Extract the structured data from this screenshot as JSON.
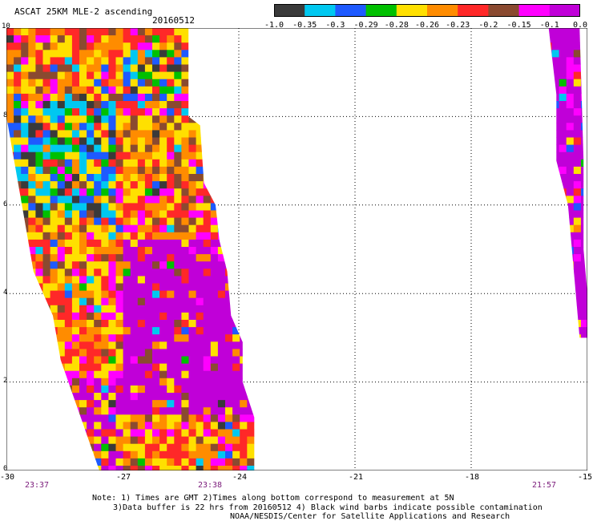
{
  "header": {
    "title": "ASCAT 25KM MLE-2 ascending",
    "date": "20160512"
  },
  "colorbar": {
    "colors": [
      "#3a3a3a",
      "#00c8f0",
      "#1e5aff",
      "#00c000",
      "#ffe000",
      "#ff8c00",
      "#ff2828",
      "#8a4a30",
      "#ff00ff",
      "#c000d8"
    ],
    "labels": [
      "-1.0",
      "-0.35",
      "-0.3",
      "-0.29",
      "-0.28",
      "-0.26",
      "-0.23",
      "-0.2",
      "-0.15",
      "-0.1",
      "0.0"
    ]
  },
  "axes": {
    "y_ticks": [
      "0",
      "2",
      "4",
      "6",
      "8",
      "10"
    ],
    "x_ticks": [
      "-30",
      "-27",
      "-24",
      "-21",
      "-18",
      "-15"
    ],
    "time_labels": [
      "23:37",
      "23:38",
      "21:57"
    ]
  },
  "map": {
    "lon_range": [
      -30,
      -15
    ],
    "lat_range": [
      0,
      10
    ],
    "swaths": [
      {
        "name": "left-swath",
        "polygon_lonlat": [
          [
            -30,
            10
          ],
          [
            -25.3,
            10
          ],
          [
            -25.3,
            8
          ],
          [
            -25.0,
            7.8
          ],
          [
            -24.9,
            6.5
          ],
          [
            -24.6,
            6.0
          ],
          [
            -24.5,
            5.2
          ],
          [
            -24.3,
            4.5
          ],
          [
            -24.2,
            3.5
          ],
          [
            -23.9,
            2.9
          ],
          [
            -23.9,
            2.0
          ],
          [
            -23.6,
            1.2
          ],
          [
            -23.6,
            0
          ],
          [
            -27.6,
            0
          ],
          [
            -27.8,
            0.5
          ],
          [
            -28.2,
            1.5
          ],
          [
            -28.6,
            2.5
          ],
          [
            -28.8,
            3.5
          ],
          [
            -29.3,
            4.5
          ],
          [
            -29.5,
            5.5
          ],
          [
            -29.8,
            7.0
          ],
          [
            -30,
            8.0
          ]
        ]
      },
      {
        "name": "right-swath",
        "polygon_lonlat": [
          [
            -16.0,
            10
          ],
          [
            -15.2,
            10
          ],
          [
            -15.1,
            7
          ],
          [
            -15.1,
            5
          ],
          [
            -15.0,
            4.0
          ],
          [
            -15.0,
            3.0
          ],
          [
            -15.2,
            3.0
          ],
          [
            -15.3,
            4.0
          ],
          [
            -15.4,
            5
          ],
          [
            -15.5,
            6
          ],
          [
            -15.8,
            7
          ],
          [
            -15.8,
            8.5
          ]
        ]
      }
    ]
  },
  "notes": {
    "line1": "Note: 1) Times are GMT 2)Times along bottom correspond to measurement at 5N",
    "line2": "3)Data buffer is 22 hrs from 20160512 4) Black wind barbs indicate possible contamination",
    "line3": "NOAA/NESDIS/Center for Satellite Applications and Research"
  }
}
